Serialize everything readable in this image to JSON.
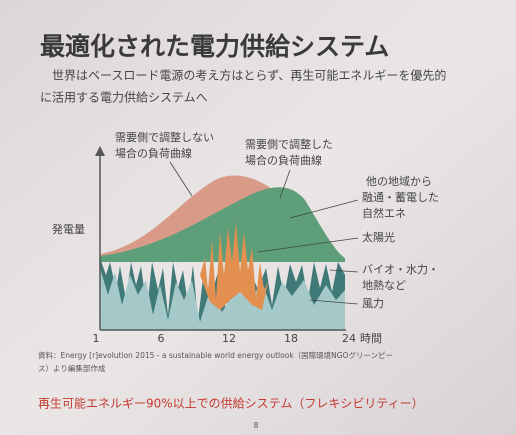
{
  "title": "最適化された電力供給システム",
  "subtitle": {
    "lines": [
      "世界はベースロード電源の考え方はとらず、再生可能エネルギーを優先的",
      "に活用する電力供給システムへ"
    ]
  },
  "diagram": {
    "y_label": "発電量",
    "x_ticks": [
      "1",
      "6",
      "12",
      "18",
      "24"
    ],
    "x_unit": "時間",
    "annotations": [
      {
        "lines": [
          "需要側で調整しない",
          "場合の負荷曲線"
        ]
      },
      {
        "lines": [
          "需要側で調整した",
          "場合の負荷曲線"
        ]
      },
      {
        "lines": [
          "他の地域から",
          "融通・蓄電した",
          "自然エネ"
        ]
      },
      {
        "lines": [
          "太陽光"
        ]
      },
      {
        "lines": [
          "バイオ・水力・",
          "地熱など"
        ]
      },
      {
        "lines": [
          "風力"
        ]
      }
    ]
  },
  "source": {
    "lines": [
      "資料：Energy [r]evolution 2015 - a sustainable world energy outlook（国際環境NGOグリーンピー",
      "ス）より編集部作成"
    ]
  },
  "footer": "再生可能エネルギー90%以上での供給システム（フレキシビリティー）",
  "page_number": "8"
}
